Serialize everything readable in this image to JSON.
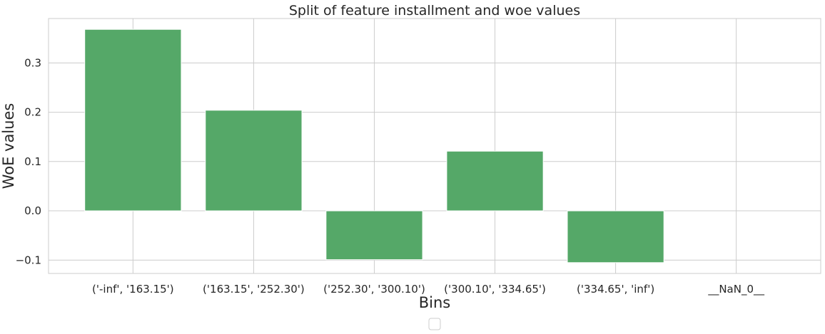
{
  "chart_data": {
    "type": "bar",
    "title": "Split of feature installment and woe values",
    "xlabel": "Bins",
    "ylabel": "WoE values",
    "categories": [
      "('-inf', '163.15')",
      "('163.15', '252.30')",
      "('252.30', '300.10')",
      "('300.10', '334.65')",
      "('334.65', 'inf')",
      "__NaN_0__"
    ],
    "values": [
      0.368,
      0.204,
      -0.099,
      0.121,
      -0.105,
      0.0
    ],
    "ylim": [
      -0.127,
      0.39
    ],
    "yticks": [
      -0.1,
      0.0,
      0.1,
      0.2,
      0.3
    ],
    "ytick_labels": [
      "−0.1",
      "0.0",
      "0.1",
      "0.2",
      "0.3"
    ],
    "grid": true,
    "legend_placement": "bottom-center",
    "colors": {
      "bar": "#55a868",
      "grid": "#cccccc",
      "frame": "#cccccc",
      "text": "#262626"
    }
  }
}
